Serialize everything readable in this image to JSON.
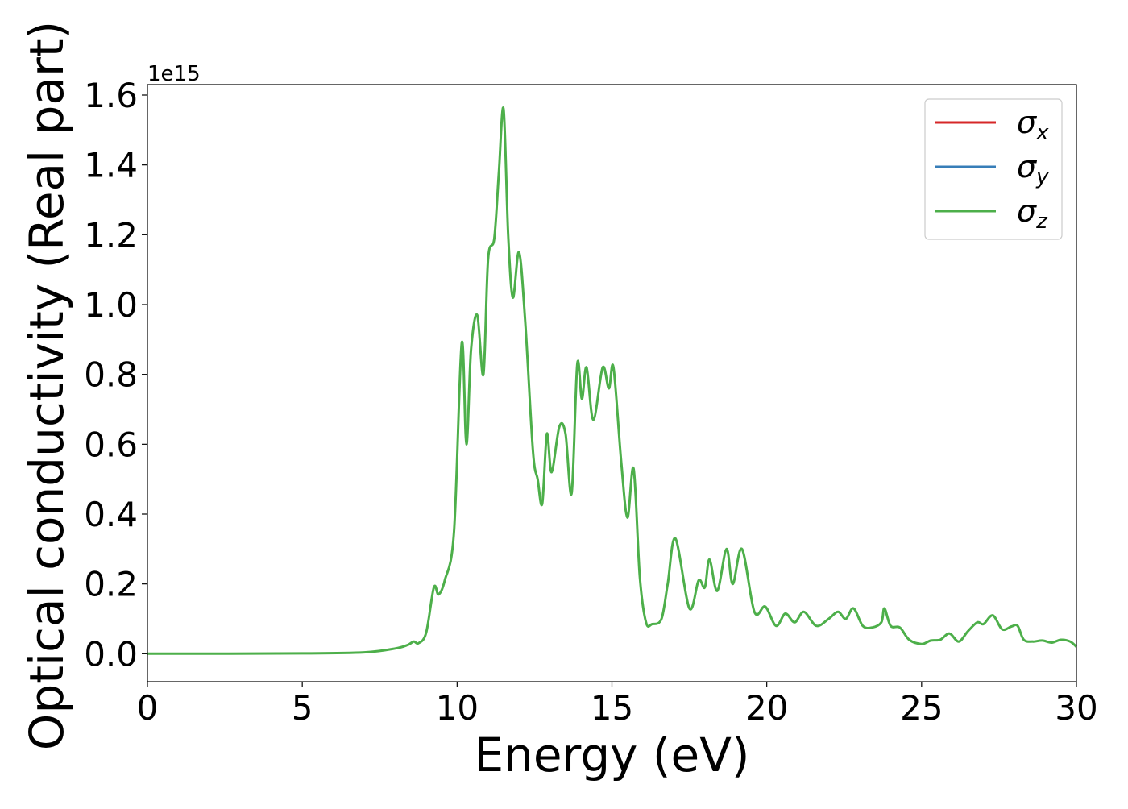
{
  "chart_data": {
    "type": "line",
    "xlabel": "Energy (eV)",
    "ylabel": "Optical conductivity (Real part)",
    "y_offset_label": "1e15",
    "xlim": [
      0,
      30
    ],
    "ylim": [
      -0.08,
      1.63
    ],
    "x_ticks": [
      0,
      5,
      10,
      15,
      20,
      25,
      30
    ],
    "x_tick_labels": [
      "0",
      "5",
      "10",
      "15",
      "20",
      "25",
      "30"
    ],
    "y_ticks": [
      0.0,
      0.2,
      0.4,
      0.6,
      0.8,
      1.0,
      1.2,
      1.4,
      1.6
    ],
    "y_tick_labels": [
      "0.0",
      "0.2",
      "0.4",
      "0.6",
      "0.8",
      "1.0",
      "1.2",
      "1.4",
      "1.6"
    ],
    "grid": false,
    "legend_position": "top-right",
    "legend": [
      {
        "symbol": "σ",
        "subscript": "x",
        "color": "#d62728"
      },
      {
        "symbol": "σ",
        "subscript": "y",
        "color": "#377eb8"
      },
      {
        "symbol": "σ",
        "subscript": "z",
        "color": "#4daf4a"
      }
    ],
    "series": [
      {
        "color": "#4daf4a",
        "x": [
          0,
          5,
          7,
          8,
          8.4,
          8.6,
          8.75,
          9.0,
          9.25,
          9.4,
          9.6,
          9.9,
          10.15,
          10.3,
          10.45,
          10.65,
          10.85,
          11.0,
          11.2,
          11.35,
          11.5,
          11.65,
          11.8,
          12.0,
          12.2,
          12.45,
          12.6,
          12.75,
          12.9,
          13.05,
          13.3,
          13.5,
          13.7,
          13.88,
          14.03,
          14.18,
          14.4,
          14.7,
          14.9,
          15.05,
          15.3,
          15.5,
          15.7,
          15.9,
          16.1,
          16.3,
          16.6,
          16.8,
          17.05,
          17.5,
          17.8,
          18.0,
          18.15,
          18.4,
          18.7,
          18.9,
          19.2,
          19.6,
          19.95,
          20.3,
          20.6,
          20.9,
          21.2,
          21.6,
          22.0,
          22.3,
          22.55,
          22.8,
          23.1,
          23.4,
          23.7,
          23.8,
          24.0,
          24.3,
          24.6,
          25.0,
          25.3,
          25.6,
          25.9,
          26.2,
          26.5,
          26.8,
          27.0,
          27.3,
          27.6,
          27.9,
          28.1,
          28.3,
          28.6,
          28.9,
          29.2,
          29.5,
          29.8,
          30
        ],
        "values": [
          0.0,
          0.001,
          0.004,
          0.015,
          0.025,
          0.035,
          0.03,
          0.06,
          0.19,
          0.17,
          0.21,
          0.35,
          0.89,
          0.6,
          0.87,
          0.97,
          0.8,
          1.13,
          1.19,
          1.38,
          1.56,
          1.2,
          1.02,
          1.15,
          0.95,
          0.58,
          0.5,
          0.43,
          0.63,
          0.52,
          0.65,
          0.63,
          0.46,
          0.83,
          0.73,
          0.82,
          0.67,
          0.82,
          0.76,
          0.82,
          0.55,
          0.39,
          0.53,
          0.22,
          0.09,
          0.085,
          0.1,
          0.2,
          0.33,
          0.13,
          0.21,
          0.19,
          0.27,
          0.18,
          0.3,
          0.2,
          0.3,
          0.12,
          0.135,
          0.08,
          0.115,
          0.09,
          0.12,
          0.08,
          0.1,
          0.12,
          0.1,
          0.13,
          0.08,
          0.075,
          0.09,
          0.13,
          0.08,
          0.075,
          0.04,
          0.028,
          0.038,
          0.04,
          0.058,
          0.035,
          0.065,
          0.09,
          0.085,
          0.11,
          0.07,
          0.078,
          0.08,
          0.04,
          0.035,
          0.038,
          0.032,
          0.04,
          0.035,
          0.02
        ]
      }
    ]
  }
}
